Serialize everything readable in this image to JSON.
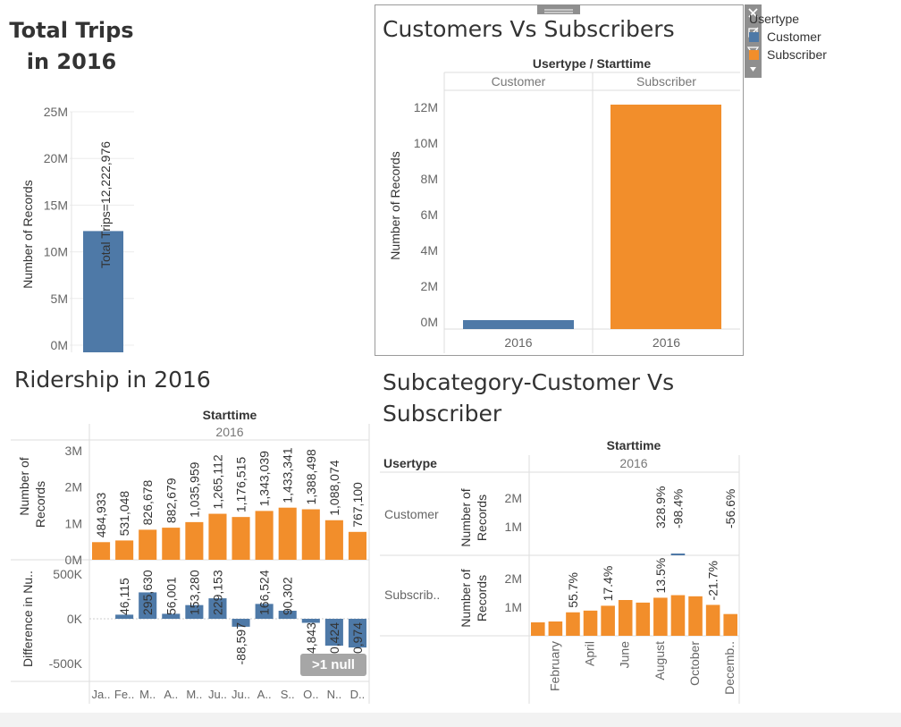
{
  "dashboard": {
    "total_title_line1": "Total Trips",
    "total_title_line2": "in 2016",
    "cust_title": "Customers Vs Subscribers",
    "rider_title": "Ridership  in 2016",
    "sub_title_line1": "Subcategory-Customer Vs",
    "sub_title_line2": "Subscriber",
    "legend_title": "Usertype",
    "legend_items": [
      {
        "label": "Customer",
        "color": "#4e79a7"
      },
      {
        "label": "Subscriber",
        "color": "#f28e2b"
      }
    ],
    "colors": {
      "blue": "#4e79a7",
      "orange": "#f28e2b"
    },
    "null_badge": ">1 null",
    "icons": [
      "close-icon",
      "popout-icon",
      "filter-icon",
      "dropdown-arrow-icon",
      "drag-grip-icon"
    ]
  },
  "chart_data": [
    {
      "type": "bar",
      "id": "total_trips",
      "title": "Total Trips in 2016",
      "ylabel": "Number of Records",
      "yticks": [
        "0M",
        "5M",
        "10M",
        "15M",
        "20M",
        "25M"
      ],
      "ylim": [
        0,
        25000000
      ],
      "values": [
        12222976
      ],
      "data_label": "Total Trips=12,222,976",
      "grid": true
    },
    {
      "type": "bar",
      "id": "customers_vs_subscribers",
      "title": "Customers Vs Subscribers",
      "header": "Usertype  /  Starttime",
      "columns": [
        "Customer",
        "Subscriber"
      ],
      "categories": [
        "2016",
        "2016"
      ],
      "values": [
        75000,
        12150000
      ],
      "ylabel": "Number of Records",
      "yticks": [
        "0M",
        "2M",
        "4M",
        "6M",
        "8M",
        "10M",
        "12M"
      ],
      "ylim": [
        0,
        12500000
      ],
      "colors": [
        "#4e79a7",
        "#f28e2b"
      ]
    },
    {
      "type": "bar",
      "id": "ridership",
      "title": "Ridership  in 2016",
      "header": "Starttime",
      "subheader": "2016",
      "categories": [
        "Ja..",
        "Fe..",
        "M..",
        "A..",
        "M..",
        "Ju..",
        "Ju..",
        "A..",
        "S..",
        "O..",
        "N..",
        "D.."
      ],
      "series": [
        {
          "ylabel": "Number of Records",
          "yticks": [
            "0M",
            "1M",
            "2M",
            "3M"
          ],
          "ylim": [
            0,
            3000000
          ],
          "values": [
            484933,
            531048,
            826678,
            882679,
            1035959,
            1265112,
            1176515,
            1343039,
            1433341,
            1388498,
            1088074,
            767100
          ],
          "labels": [
            "484,933",
            "531,048",
            "826,678",
            "882,679",
            "1,035,959",
            "1,265,112",
            "1,176,515",
            "1,343,039",
            "1,433,341",
            "1,388,498",
            "1,088,074",
            "767,100"
          ]
        },
        {
          "ylabel": "Difference in Nu..",
          "yticks": [
            "-500K",
            "0K",
            "500K"
          ],
          "ylim": [
            -500000,
            500000
          ],
          "values": [
            null,
            46115,
            295630,
            56001,
            153280,
            229153,
            -88597,
            166524,
            90302,
            -44843,
            -300424,
            -320974
          ],
          "labels": [
            "",
            "46,115",
            "295,630",
            "56,001",
            "153,280",
            "229,153",
            "-88,597",
            "166,524",
            "90,302",
            "-44,843",
            "-300,424",
            "-320,974"
          ]
        }
      ]
    },
    {
      "type": "bar",
      "id": "subcategory",
      "title": "Subcategory-Customer Vs Subscriber",
      "header": "Starttime",
      "subheader": "2016",
      "row_header": "Usertype",
      "rows": [
        "Customer",
        "Subscrib.."
      ],
      "ylabel": "Number of Records",
      "x_tick_labels": [
        "February",
        "April",
        "June",
        "August",
        "October",
        "Decemb.."
      ],
      "customer": {
        "yticks": [
          "1M",
          "2M"
        ],
        "ylim": [
          0,
          2500000
        ],
        "values": [
          0,
          0,
          0,
          0,
          0,
          0,
          0,
          0,
          30000,
          0,
          0,
          0
        ],
        "labels": [
          "",
          "",
          "",
          "",
          "",
          "",
          "",
          "328.9%",
          "-98.4%",
          "",
          "",
          "-56.6%"
        ]
      },
      "subscriber": {
        "yticks": [
          "1M",
          "2M"
        ],
        "ylim": [
          0,
          2500000
        ],
        "values": [
          470000,
          500000,
          820000,
          880000,
          1050000,
          1250000,
          1160000,
          1330000,
          1420000,
          1380000,
          1080000,
          760000
        ],
        "labels": [
          "",
          "",
          "55.7%",
          "",
          "17.4%",
          "",
          "",
          "13.5%",
          "",
          "",
          "-21.7%",
          ""
        ]
      }
    }
  ]
}
